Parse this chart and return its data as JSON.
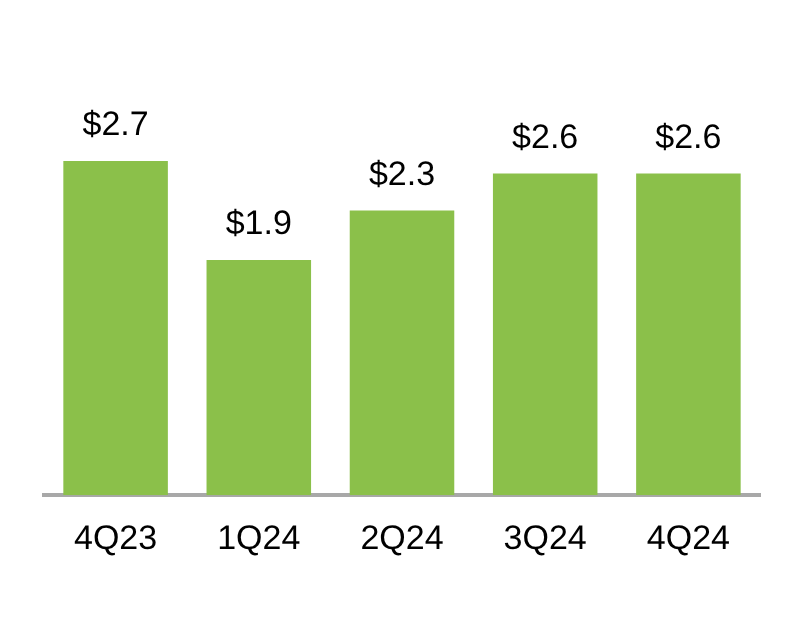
{
  "chart_data": {
    "type": "bar",
    "categories": [
      "4Q23",
      "1Q24",
      "2Q24",
      "3Q24",
      "4Q24"
    ],
    "values": [
      2.7,
      1.9,
      2.3,
      2.6,
      2.6
    ],
    "value_labels": [
      "$2.7",
      "$1.9",
      "$2.3",
      "$2.6",
      "$2.6"
    ],
    "color": "#8bc04a",
    "grid": false,
    "legend": false
  }
}
